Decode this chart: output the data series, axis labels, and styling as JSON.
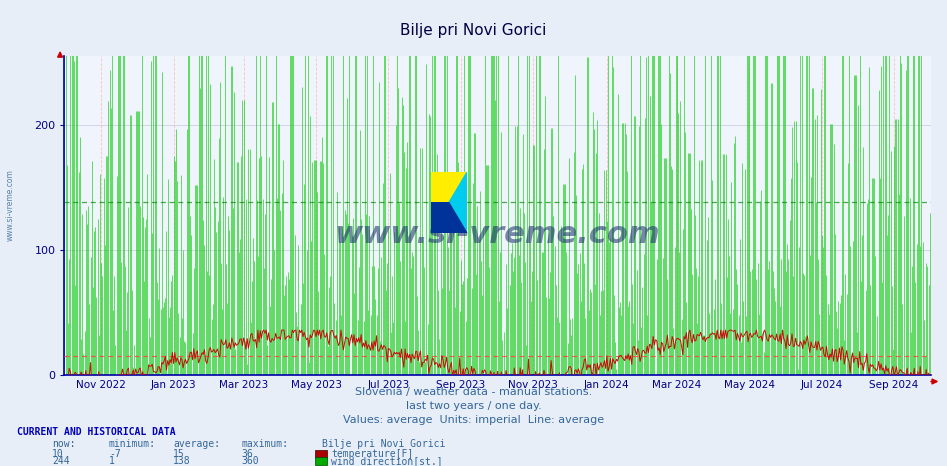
{
  "title": "Bilje pri Novi Gorici",
  "subtitle1": "Slovenia / weather data - manual stations.",
  "subtitle2": "last two years / one day.",
  "subtitle3": "Values: average  Units: imperial  Line: average",
  "bg_color": "#e8eef8",
  "plot_bg_color": "#f0f4fc",
  "temp_color": "#cc0000",
  "wind_dir_color": "#00cc00",
  "temp_avg_line_color": "#ff6666",
  "wind_avg_line_color": "#009900",
  "grid_color_major": "#aaaacc",
  "grid_color_minor": "#ffbbbb",
  "ylabel_color": "#000088",
  "title_color": "#000044",
  "text_color": "#336699",
  "axis_color": "#0000aa",
  "x_tick_labels": [
    "Nov 2022",
    "Jan 2023",
    "Mar 2023",
    "May 2023",
    "Jul 2023",
    "Sep 2023",
    "Nov 2023",
    "Jan 2024",
    "Mar 2024",
    "May 2024",
    "Jul 2024",
    "Sep 2024"
  ],
  "x_tick_positions": [
    31,
    92,
    151,
    212,
    273,
    334,
    395,
    457,
    516,
    577,
    638,
    699
  ],
  "ylim": [
    0,
    255
  ],
  "yticks": [
    0,
    100,
    200
  ],
  "temp_now": 10,
  "temp_min": -7,
  "temp_avg": 15,
  "temp_max": 36,
  "wind_now": 244,
  "wind_min": 1,
  "wind_avg": 138,
  "wind_max": 360,
  "temp_avg_value": 15,
  "wind_avg_value": 138,
  "n_points": 730,
  "watermark": "www.si-vreme.com",
  "logo_yellow": "#ffee00",
  "logo_cyan": "#00ccee",
  "logo_blue": "#003399"
}
